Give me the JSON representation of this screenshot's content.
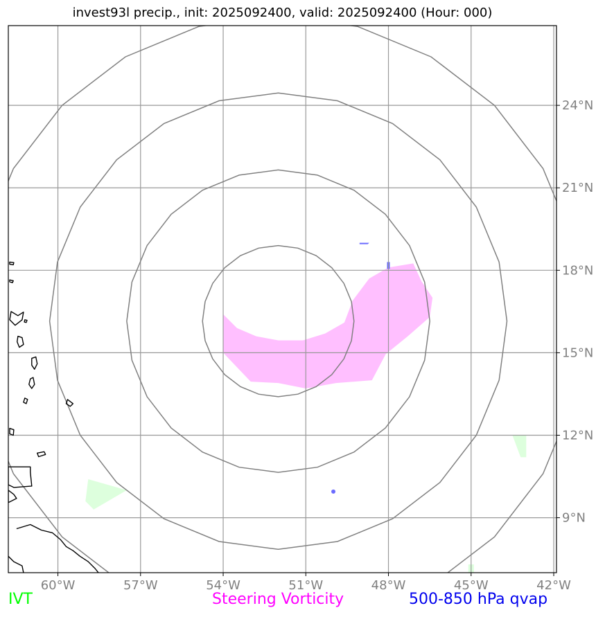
{
  "title": "invest93l precip., init: 2025092400, valid: 2025092400 (Hour: 000)",
  "legend": {
    "ivt": {
      "label": "IVT",
      "color": "#00ff00"
    },
    "vorticity": {
      "label": "Steering Vorticity",
      "color": "#ff00ff"
    },
    "qvap": {
      "label": "500-850 hPa qvap",
      "color": "#0000ee"
    }
  },
  "map": {
    "lon_range": [
      -61.8,
      -41.9
    ],
    "lat_range": [
      7.0,
      26.9
    ],
    "lon_ticks": [
      {
        "value": -60,
        "label": "60°W"
      },
      {
        "value": -57,
        "label": "57°W"
      },
      {
        "value": -54,
        "label": "54°W"
      },
      {
        "value": -51,
        "label": "51°W"
      },
      {
        "value": -48,
        "label": "48°W"
      },
      {
        "value": -45,
        "label": "45°W"
      },
      {
        "value": -42,
        "label": "42°W"
      }
    ],
    "lat_ticks": [
      {
        "value": 9,
        "label": "9°N"
      },
      {
        "value": 12,
        "label": "12°N"
      },
      {
        "value": 15,
        "label": "15°N"
      },
      {
        "value": 18,
        "label": "18°N"
      },
      {
        "value": 21,
        "label": "21°N"
      },
      {
        "value": 24,
        "label": "24°N"
      }
    ],
    "range_rings": {
      "center": {
        "lon": -52.0,
        "lat": 16.15
      },
      "radii_deg": [
        2.75,
        5.5,
        8.3,
        11.1
      ]
    },
    "colors": {
      "grid": "#999999",
      "rings": "#808080",
      "coast": "#000000",
      "vorticity_fill": "#ffbfff",
      "ivt_fill": "#ddffdd",
      "qvap_fill": "#6a6aff",
      "tick_label": "#808080"
    }
  }
}
